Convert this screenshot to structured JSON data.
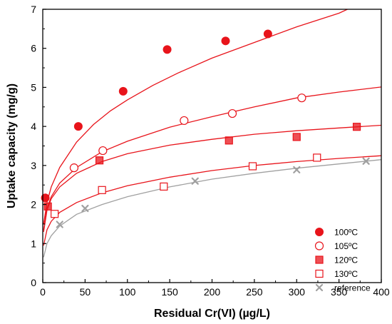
{
  "chart_data": {
    "type": "scatter",
    "xlabel": "Residual Cr(VI) (µg/L)",
    "ylabel": "Uptake capacity (mg/g)",
    "xlim": [
      0,
      400
    ],
    "ylim": [
      0,
      7
    ],
    "x_ticks": [
      0,
      50,
      100,
      150,
      200,
      250,
      300,
      350,
      400
    ],
    "y_ticks": [
      0,
      1,
      2,
      3,
      4,
      5,
      6,
      7
    ],
    "grid": false,
    "legend_position": "bottom-right",
    "series": [
      {
        "name": "100ºC",
        "marker": "circle-filled",
        "color": "#e8141b",
        "points": [
          [
            3,
            2.17
          ],
          [
            42,
            4.0
          ],
          [
            95,
            4.9
          ],
          [
            147,
            5.97
          ],
          [
            216,
            6.19
          ],
          [
            266,
            6.37
          ]
        ],
        "fit_curve": [
          [
            1,
            1.5
          ],
          [
            5,
            2.05
          ],
          [
            10,
            2.45
          ],
          [
            20,
            2.95
          ],
          [
            40,
            3.6
          ],
          [
            60,
            4.05
          ],
          [
            80,
            4.4
          ],
          [
            100,
            4.68
          ],
          [
            130,
            5.05
          ],
          [
            160,
            5.37
          ],
          [
            200,
            5.75
          ],
          [
            250,
            6.15
          ],
          [
            300,
            6.55
          ],
          [
            350,
            6.9
          ],
          [
            360,
            7.0
          ]
        ]
      },
      {
        "name": "105ºC",
        "marker": "circle-open",
        "color": "#e8141b",
        "points": [
          [
            37,
            2.94
          ],
          [
            71,
            3.38
          ],
          [
            167,
            4.15
          ],
          [
            224,
            4.33
          ],
          [
            306,
            4.73
          ]
        ],
        "fit_curve": [
          [
            1,
            1.35
          ],
          [
            5,
            1.9
          ],
          [
            10,
            2.2
          ],
          [
            20,
            2.55
          ],
          [
            40,
            2.95
          ],
          [
            70,
            3.35
          ],
          [
            100,
            3.62
          ],
          [
            150,
            3.98
          ],
          [
            200,
            4.25
          ],
          [
            250,
            4.5
          ],
          [
            300,
            4.73
          ],
          [
            350,
            4.88
          ],
          [
            400,
            5.01
          ]
        ]
      },
      {
        "name": "120ºC",
        "marker": "square-filled",
        "color": "#e8141b",
        "points": [
          [
            6,
            1.95
          ],
          [
            67,
            3.13
          ],
          [
            220,
            3.64
          ],
          [
            300,
            3.73
          ],
          [
            371,
            3.99
          ]
        ],
        "fit_curve": [
          [
            1,
            1.3
          ],
          [
            5,
            1.85
          ],
          [
            10,
            2.15
          ],
          [
            20,
            2.45
          ],
          [
            40,
            2.8
          ],
          [
            70,
            3.1
          ],
          [
            100,
            3.3
          ],
          [
            150,
            3.52
          ],
          [
            200,
            3.67
          ],
          [
            250,
            3.8
          ],
          [
            300,
            3.89
          ],
          [
            350,
            3.96
          ],
          [
            400,
            4.03
          ]
        ]
      },
      {
        "name": "130ºC",
        "marker": "square-open",
        "color": "#e8141b",
        "points": [
          [
            14,
            1.76
          ],
          [
            70,
            2.37
          ],
          [
            143,
            2.46
          ],
          [
            248,
            2.98
          ],
          [
            324,
            3.2
          ]
        ],
        "fit_curve": [
          [
            1,
            0.95
          ],
          [
            5,
            1.35
          ],
          [
            10,
            1.57
          ],
          [
            20,
            1.8
          ],
          [
            40,
            2.05
          ],
          [
            70,
            2.3
          ],
          [
            100,
            2.48
          ],
          [
            150,
            2.7
          ],
          [
            200,
            2.87
          ],
          [
            250,
            3.0
          ],
          [
            300,
            3.1
          ],
          [
            350,
            3.18
          ],
          [
            400,
            3.25
          ]
        ]
      },
      {
        "name": "reference",
        "marker": "cross",
        "color": "#a0a0a0",
        "points": [
          [
            20,
            1.49
          ],
          [
            50,
            1.9
          ],
          [
            180,
            2.6
          ],
          [
            300,
            2.89
          ],
          [
            382,
            3.11
          ]
        ],
        "fit_curve": [
          [
            1,
            0.65
          ],
          [
            5,
            1.0
          ],
          [
            10,
            1.2
          ],
          [
            20,
            1.45
          ],
          [
            40,
            1.75
          ],
          [
            70,
            2.0
          ],
          [
            100,
            2.2
          ],
          [
            150,
            2.45
          ],
          [
            200,
            2.65
          ],
          [
            250,
            2.8
          ],
          [
            300,
            2.93
          ],
          [
            350,
            3.04
          ],
          [
            400,
            3.15
          ]
        ]
      }
    ]
  }
}
